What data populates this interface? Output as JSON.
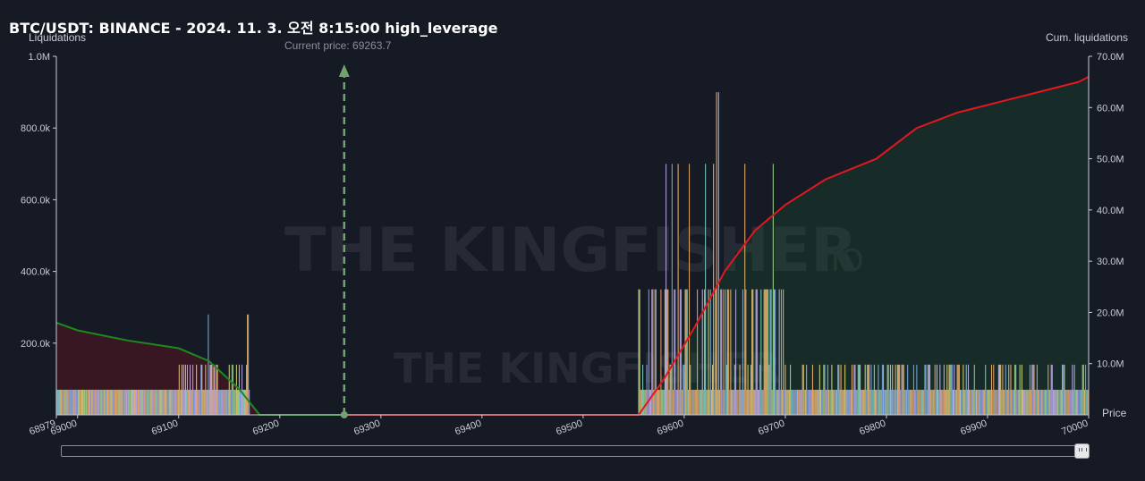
{
  "title": "BTC/USDT: BINANCE - 2024. 11. 3. 오전 8:15:00 high_leverage",
  "current_price_label": "Current price: 69263.7",
  "watermark": "THE KINGFISHER",
  "watermark_suffix": ".IO",
  "colors": {
    "background": "#161a25",
    "short_cum_line": "#e0191f",
    "long_cum_line": "#1e8a1e",
    "current_price_marker": "#6fa46f"
  },
  "chart_data": {
    "type": "bar",
    "left_axis": {
      "label": "Liquidations",
      "range": [
        0,
        1000000
      ],
      "ticks": [
        "200.0k",
        "400.0k",
        "600.0k",
        "800.0k",
        "1.0M"
      ]
    },
    "right_axis": {
      "label": "Cum. liquidations",
      "range": [
        0,
        70000000
      ],
      "ticks": [
        "10.0M",
        "20.0M",
        "30.0M",
        "40.0M",
        "50.0M",
        "60.0M",
        "70.0M"
      ]
    },
    "x_axis": {
      "label": "Price",
      "range": [
        68979,
        70000
      ],
      "ticks": [
        "68979",
        "69000",
        "69100",
        "69200",
        "69300",
        "69400",
        "69500",
        "69600",
        "69700",
        "69800",
        "69900",
        "70000"
      ]
    },
    "current_price": 69263.7,
    "long_cumulative": {
      "x": [
        68979,
        69000,
        69050,
        69100,
        69130,
        69160,
        69180,
        69263.7
      ],
      "y": [
        18000000,
        16500000,
        14500000,
        13000000,
        10500000,
        5000000,
        0,
        0
      ]
    },
    "short_cumulative": {
      "x": [
        69263.7,
        69555,
        69580,
        69610,
        69640,
        69670,
        69700,
        69740,
        69790,
        69830,
        69870,
        69930,
        69990,
        70000
      ],
      "y": [
        0,
        0,
        7000000,
        17000000,
        28000000,
        36000000,
        41000000,
        46000000,
        50000000,
        56000000,
        59000000,
        62000000,
        65000000,
        66000000
      ]
    },
    "long_bar_levels": [
      70000,
      140000,
      280000
    ],
    "short_bar_levels": [
      70000,
      140000,
      350000,
      700000,
      900000
    ]
  }
}
